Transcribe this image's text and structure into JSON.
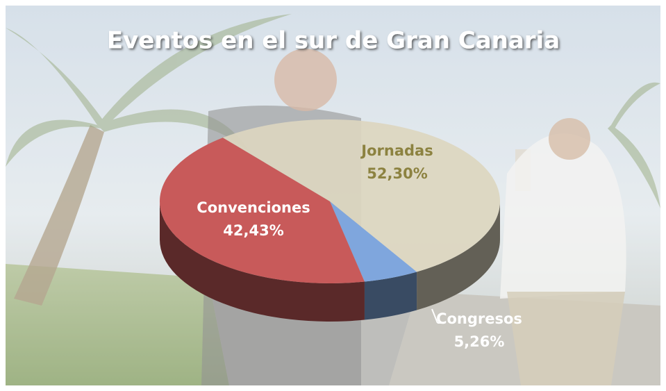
{
  "chart_data": {
    "type": "pie",
    "title": "Eventos en el sur de Gran Canaria",
    "categories": [
      "Jornadas",
      "Congresos",
      "Convenciones"
    ],
    "values": [
      52.3,
      5.26,
      42.43
    ],
    "value_labels": [
      "52,30%",
      "5,26%",
      "42,43%"
    ],
    "colors": [
      "#dcd6bf",
      "#7fa6dd",
      "#c85a5a"
    ]
  }
}
